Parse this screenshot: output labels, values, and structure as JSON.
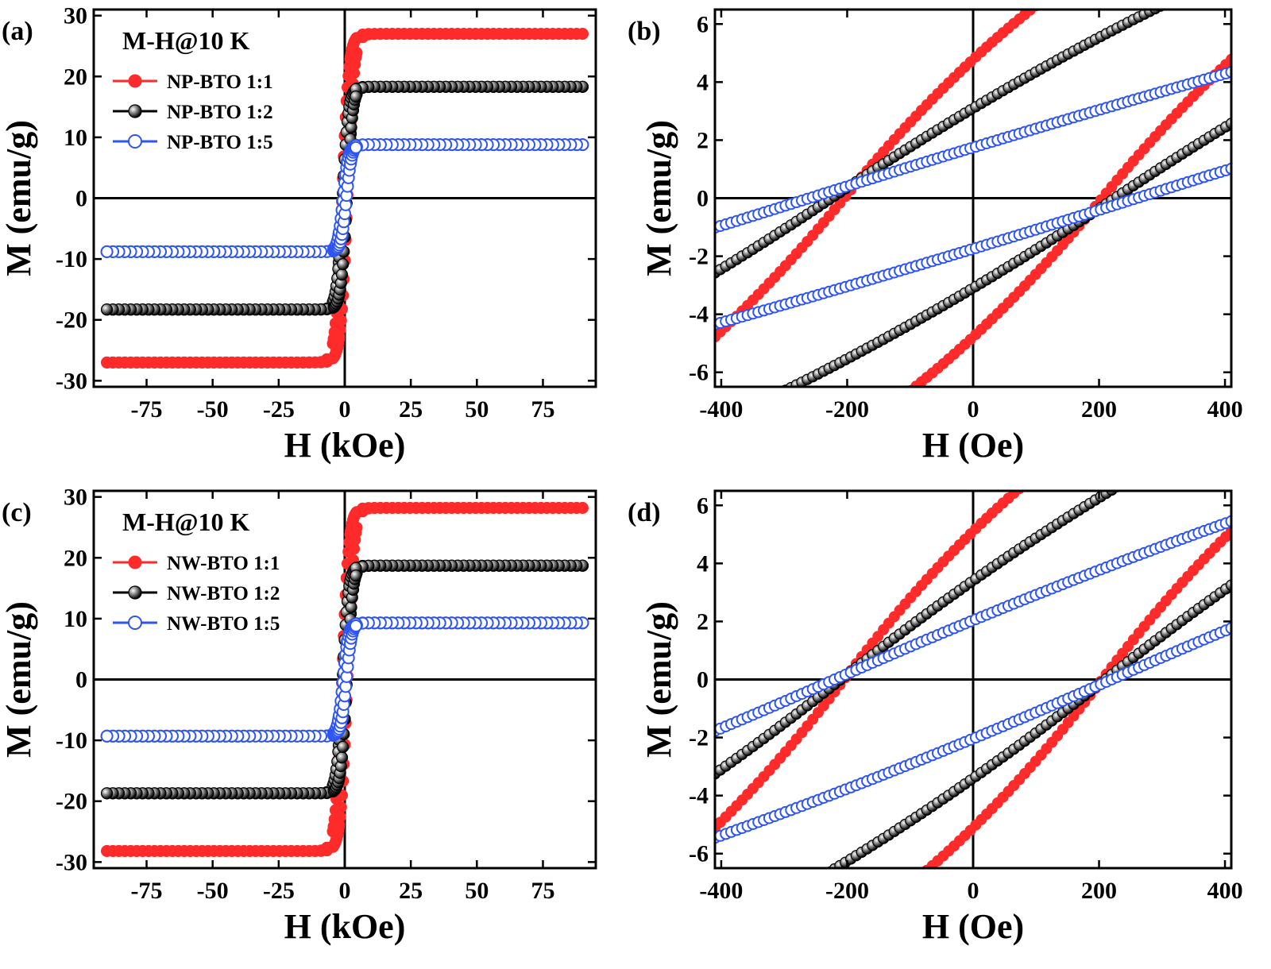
{
  "chart_data": [
    {
      "panel": "(a)",
      "type": "scatter",
      "xlabel": "H (kOe)",
      "ylabel": "M (emu/g)",
      "xlim": [
        -95,
        95
      ],
      "ylim": [
        -31,
        31
      ],
      "xticks": [
        -75,
        -50,
        -25,
        0,
        25,
        50,
        75
      ],
      "yticks": [
        -30,
        -20,
        -10,
        0,
        10,
        20,
        30
      ],
      "annotation": "M-H@10 K",
      "legend_position": "top-left",
      "curve": "full",
      "series": [
        {
          "name": "NP-BTO 1:1",
          "color": "#ff2a2a",
          "marker": "filled",
          "ms": 27.0,
          "x0": 1.0,
          "w": 2.5
        },
        {
          "name": "NP-BTO 1:2",
          "color": "#000000",
          "marker": "sphere",
          "ms": 18.3,
          "x0": 0.8,
          "w": 2.2
        },
        {
          "name": "NP-BTO 1:5",
          "color": "#2f55f0",
          "marker": "open",
          "ms": 8.8,
          "x0": 0.6,
          "w": 2.0
        }
      ]
    },
    {
      "panel": "(b)",
      "type": "scatter",
      "xlabel": "H (Oe)",
      "ylabel": "M (emu/g)",
      "xlim": [
        -410,
        410
      ],
      "ylim": [
        -6.5,
        6.5
      ],
      "xticks": [
        -400,
        -200,
        0,
        200,
        400
      ],
      "yticks": [
        -6,
        -4,
        -2,
        0,
        2,
        4,
        6
      ],
      "curve": "loop",
      "series": [
        {
          "name": "NP-BTO 1:1",
          "color": "#ff2a2a",
          "marker": "filled",
          "a": 0.0,
          "b": 0.0265,
          "c": 3.1e-05,
          "hc": 205
        },
        {
          "name": "NP-BTO 1:2",
          "color": "#000000",
          "marker": "sphere",
          "a": 0.0,
          "b": 0.0146,
          "c": 7.4e-06,
          "hc": 225
        },
        {
          "name": "NP-BTO 1:5",
          "color": "#2f55f0",
          "marker": "open",
          "a": 0.0,
          "b": 0.00686,
          "c": 1.1e-06,
          "hc": 260
        }
      ]
    },
    {
      "panel": "(c)",
      "type": "scatter",
      "xlabel": "H (kOe)",
      "ylabel": "M (emu/g)",
      "xlim": [
        -95,
        95
      ],
      "ylim": [
        -31,
        31
      ],
      "xticks": [
        -75,
        -50,
        -25,
        0,
        25,
        50,
        75
      ],
      "yticks": [
        -30,
        -20,
        -10,
        0,
        10,
        20,
        30
      ],
      "annotation": "M-H@10 K",
      "legend_position": "top-left",
      "curve": "full",
      "series": [
        {
          "name": "NW-BTO 1:1",
          "color": "#ff2a2a",
          "marker": "filled",
          "ms": 28.2,
          "x0": 1.0,
          "w": 2.5
        },
        {
          "name": "NW-BTO 1:2",
          "color": "#000000",
          "marker": "sphere",
          "ms": 18.7,
          "x0": 0.8,
          "w": 2.2
        },
        {
          "name": "NW-BTO 1:5",
          "color": "#2f55f0",
          "marker": "open",
          "ms": 9.3,
          "x0": 0.6,
          "w": 2.0
        }
      ]
    },
    {
      "panel": "(d)",
      "type": "scatter",
      "xlabel": "H (Oe)",
      "ylabel": "M (emu/g)",
      "xlim": [
        -410,
        410
      ],
      "ylim": [
        -6.5,
        6.5
      ],
      "xticks": [
        -400,
        -200,
        0,
        200,
        400
      ],
      "yticks": [
        -6,
        -4,
        -2,
        0,
        2,
        4,
        6
      ],
      "curve": "loop",
      "series": [
        {
          "name": "NW-BTO 1:1",
          "color": "#ff2a2a",
          "marker": "filled",
          "a": 0.0,
          "b": 0.0285,
          "c": 3.5e-05,
          "hc": 205
        },
        {
          "name": "NW-BTO 1:2",
          "color": "#000000",
          "marker": "sphere",
          "a": 0.0,
          "b": 0.0172,
          "c": 9.4e-06,
          "hc": 210
        },
        {
          "name": "NW-BTO 1:5",
          "color": "#2f55f0",
          "marker": "open",
          "a": 0.0,
          "b": 0.0096,
          "c": 3e-06,
          "hc": 220
        }
      ]
    }
  ]
}
